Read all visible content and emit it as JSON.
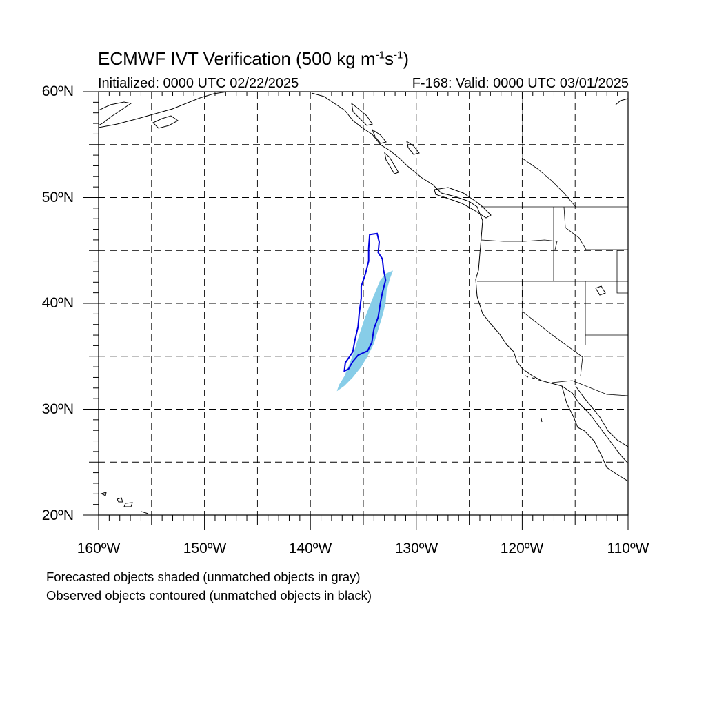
{
  "header": {
    "title_main": "ECMWF IVT Verification (500 kg m",
    "title_sup1": "-1",
    "title_mid": "s",
    "title_sup2": "-1",
    "title_end": ")",
    "initialized": "Initialized: 0000 UTC 02/22/2025",
    "valid": "F-168: Valid: 0000 UTC 03/01/2025"
  },
  "axes": {
    "lat_labels": [
      "60ºN",
      "50ºN",
      "40ºN",
      "30ºN",
      "20ºN"
    ],
    "lon_labels": [
      "160ºW",
      "150ºW",
      "140ºW",
      "130ºW",
      "120ºW",
      "110ºW"
    ],
    "lat_range": [
      20,
      60
    ],
    "lon_range": [
      -160,
      -110
    ],
    "grid_spacing_deg": 5
  },
  "legend": {
    "forecast_note": "Forecasted objects shaded (unmatched objects in gray)",
    "observed_note": "Observed objects contoured (unmatched objects in black)"
  },
  "colors": {
    "forecast_fill": "#87cde8",
    "observed_contour": "#0000e0",
    "coastline": "#000000",
    "grid": "#000000"
  },
  "objects": {
    "forecast_object_lonlat": [
      [
        -137.5,
        31.7
      ],
      [
        -136.8,
        32.2
      ],
      [
        -136.0,
        33.0
      ],
      [
        -135.2,
        34.0
      ],
      [
        -134.6,
        35.0
      ],
      [
        -134.0,
        36.2
      ],
      [
        -133.6,
        37.5
      ],
      [
        -133.2,
        38.8
      ],
      [
        -132.9,
        40.0
      ],
      [
        -132.8,
        41.2
      ],
      [
        -132.5,
        42.3
      ],
      [
        -132.2,
        43.1
      ],
      [
        -132.9,
        42.8
      ],
      [
        -133.4,
        42.2
      ],
      [
        -133.9,
        41.0
      ],
      [
        -134.4,
        39.8
      ],
      [
        -134.9,
        38.5
      ],
      [
        -135.4,
        37.0
      ],
      [
        -135.8,
        35.7
      ],
      [
        -136.3,
        34.3
      ],
      [
        -136.8,
        33.1
      ],
      [
        -137.3,
        32.3
      ]
    ],
    "observed_object_lonlat": [
      [
        -134.4,
        46.5
      ],
      [
        -133.7,
        46.6
      ],
      [
        -133.5,
        45.8
      ],
      [
        -133.6,
        44.8
      ],
      [
        -133.2,
        44.2
      ],
      [
        -133.1,
        43.2
      ],
      [
        -132.9,
        42.2
      ],
      [
        -133.2,
        41.0
      ],
      [
        -133.4,
        40.0
      ],
      [
        -133.6,
        38.7
      ],
      [
        -134.0,
        37.6
      ],
      [
        -134.2,
        36.3
      ],
      [
        -134.6,
        35.5
      ],
      [
        -135.5,
        35.1
      ],
      [
        -136.0,
        34.5
      ],
      [
        -136.4,
        33.8
      ],
      [
        -136.8,
        33.6
      ],
      [
        -136.7,
        34.4
      ],
      [
        -136.0,
        35.4
      ],
      [
        -135.8,
        36.5
      ],
      [
        -135.5,
        37.8
      ],
      [
        -135.4,
        39.0
      ],
      [
        -135.2,
        40.5
      ],
      [
        -135.2,
        41.6
      ],
      [
        -134.8,
        42.8
      ],
      [
        -134.5,
        44.0
      ],
      [
        -134.5,
        45.2
      ]
    ]
  }
}
